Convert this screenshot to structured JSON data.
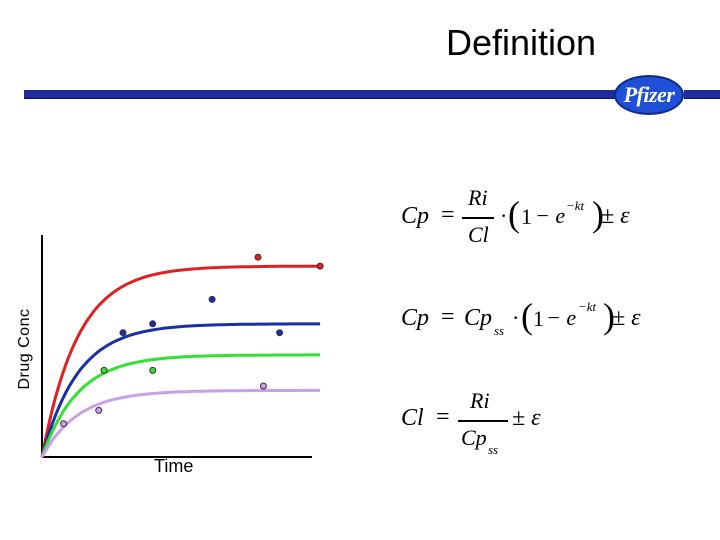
{
  "slide": {
    "title": "Definition",
    "logo_text": "Pfizer",
    "accent_color": "#1c2d9c"
  },
  "chart_data": {
    "type": "line",
    "xlabel": "Time",
    "ylabel": "Drug Conc",
    "xlim": [
      0,
      10
    ],
    "ylim": [
      0,
      10
    ],
    "grid": false,
    "series": [
      {
        "color": "#e02020",
        "plateau": 8.6,
        "rate": 0.75,
        "points": [
          [
            8.0,
            9.0
          ],
          [
            10.3,
            8.6
          ]
        ]
      },
      {
        "color": "#1a2fa8",
        "plateau": 6.0,
        "rate": 0.75,
        "points": [
          [
            3.0,
            5.6
          ],
          [
            4.1,
            6.0
          ],
          [
            6.3,
            7.1
          ],
          [
            8.8,
            5.6
          ]
        ]
      },
      {
        "color": "#33e033",
        "plateau": 4.6,
        "rate": 0.75,
        "points": [
          [
            2.3,
            3.9
          ],
          [
            4.1,
            3.9
          ]
        ]
      },
      {
        "color": "#c8a0ea",
        "plateau": 3.0,
        "rate": 0.75,
        "points": [
          [
            0.8,
            1.5
          ],
          [
            2.1,
            2.1
          ],
          [
            8.2,
            3.2
          ]
        ]
      }
    ]
  },
  "equations": {
    "eq1": {
      "lhs": "Cp",
      "num": "Ri",
      "den": "Cl",
      "exp": "−kt",
      "pm": "± ε"
    },
    "eq2": {
      "lhs": "Cp",
      "factor": "Cp",
      "sub": "ss",
      "exp": "−kt",
      "pm": "± ε"
    },
    "eq3": {
      "lhs": "Cl",
      "num": "Ri",
      "den": "Cp",
      "sub": "ss",
      "pm": "± ε"
    }
  }
}
